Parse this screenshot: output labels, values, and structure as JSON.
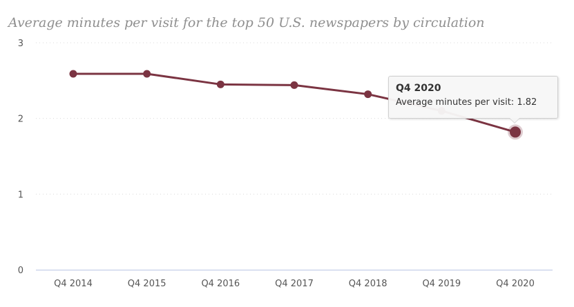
{
  "chart_data": {
    "type": "line",
    "title": "Average minutes per visit for the top 50 U.S. newspapers by circulation",
    "categories": [
      "Q4 2014",
      "Q4 2015",
      "Q4 2016",
      "Q4 2017",
      "Q4 2018",
      "Q4 2019",
      "Q4 2020"
    ],
    "series": [
      {
        "name": "Average minutes per visit",
        "values": [
          2.59,
          2.59,
          2.45,
          2.44,
          2.32,
          2.1,
          1.82
        ],
        "color": "#7b3442"
      }
    ],
    "ylim": [
      0,
      3
    ],
    "yticks": [
      0,
      1,
      2,
      3
    ],
    "grid": "dotted horizontal",
    "legend": "none",
    "xlabel": "",
    "ylabel": "",
    "highlight_index": 6
  },
  "tooltip": {
    "title": "Q4 2020",
    "label": "Average minutes per visit:",
    "value": "1.82",
    "text": "Average minutes per visit: 1.82"
  },
  "colors": {
    "line": "#7b3442",
    "grid": "#d9d9d9",
    "axis": "#ccd6eb",
    "title": "#8f8f8f"
  }
}
